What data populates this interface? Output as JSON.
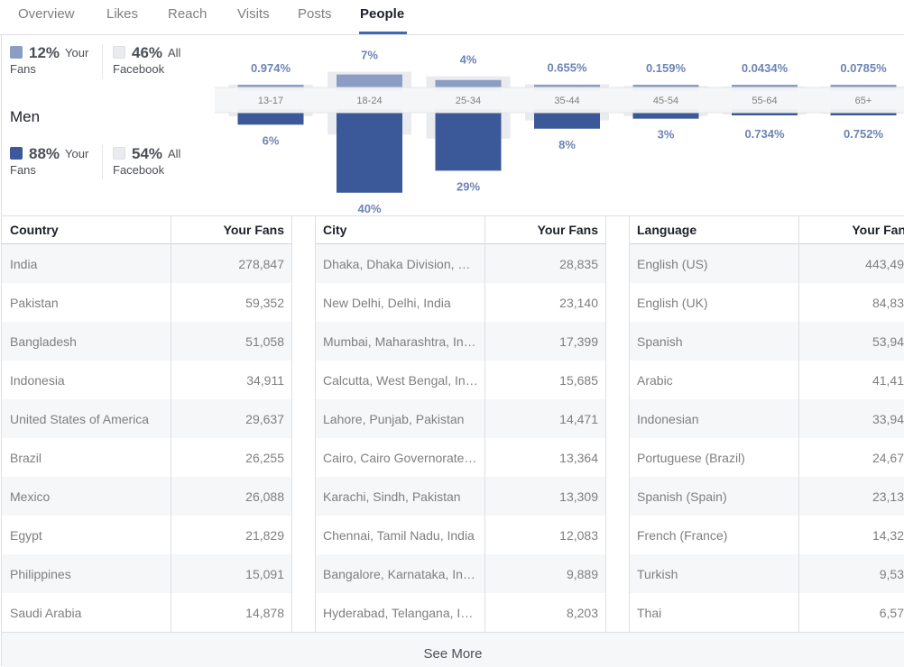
{
  "tabs": [
    {
      "label": "Overview"
    },
    {
      "label": "Likes"
    },
    {
      "label": "Reach"
    },
    {
      "label": "Visits"
    },
    {
      "label": "Posts"
    },
    {
      "label": "People",
      "active": true
    }
  ],
  "summary": {
    "women": {
      "your_fans_pct": "12%",
      "your_label_a": "Your",
      "your_label_b": "Fans",
      "all_facebook_pct": "46%",
      "all_label_a": "All",
      "all_label_b": "Facebook"
    },
    "men_title": "Men",
    "men": {
      "your_fans_pct": "88%",
      "your_label_a": "Your",
      "your_label_b": "Fans",
      "all_facebook_pct": "54%",
      "all_label_a": "All",
      "all_label_b": "Facebook"
    }
  },
  "colors": {
    "women": "#8b9dc3",
    "men": "#3b5998",
    "background_bar": "#e9ebee",
    "accent": "#4267b2"
  },
  "chart_data": {
    "type": "bar",
    "categories": [
      "13-17",
      "18-24",
      "25-34",
      "35-44",
      "45-54",
      "55-64",
      "65+"
    ],
    "series": [
      {
        "values_label": [
          "0.974%",
          "7%",
          "4%",
          "0.655%",
          "0.159%",
          "0.0434%",
          "0.0785%"
        ],
        "values": [
          0.974,
          7,
          4,
          0.655,
          0.159,
          0.0434,
          0.0785
        ]
      },
      {
        "values_label": [
          "6%",
          "40%",
          "29%",
          "8%",
          "3%",
          "0.734%",
          "0.752%"
        ],
        "values": [
          6,
          40,
          29,
          8,
          3,
          0.734,
          0.752
        ]
      }
    ],
    "background_women": [
      1.5,
      8.5,
      6.0,
      1.7,
      0.7,
      0.5,
      0.4
    ],
    "background_men": [
      1.8,
      11,
      13,
      3.9,
      1.7,
      0.9,
      0.5
    ]
  },
  "tables": [
    {
      "col1": "Country",
      "col2": "Your Fans",
      "rows": [
        [
          "India",
          "278,847"
        ],
        [
          "Pakistan",
          "59,352"
        ],
        [
          "Bangladesh",
          "51,058"
        ],
        [
          "Indonesia",
          "34,911"
        ],
        [
          "United States of America",
          "29,637"
        ],
        [
          "Brazil",
          "26,255"
        ],
        [
          "Mexico",
          "26,088"
        ],
        [
          "Egypt",
          "21,829"
        ],
        [
          "Philippines",
          "15,091"
        ],
        [
          "Saudi Arabia",
          "14,878"
        ]
      ]
    },
    {
      "col1": "City",
      "col2": "Your Fans",
      "rows": [
        [
          "Dhaka, Dhaka Division, B…",
          "28,835"
        ],
        [
          "New Delhi, Delhi, India",
          "23,140"
        ],
        [
          "Mumbai, Maharashtra, India",
          "17,399"
        ],
        [
          "Calcutta, West Bengal, India",
          "15,685"
        ],
        [
          "Lahore, Punjab, Pakistan",
          "14,471"
        ],
        [
          "Cairo, Cairo Governorate, …",
          "13,364"
        ],
        [
          "Karachi, Sindh, Pakistan",
          "13,309"
        ],
        [
          "Chennai, Tamil Nadu, India",
          "12,083"
        ],
        [
          "Bangalore, Karnataka, India",
          "9,889"
        ],
        [
          "Hyderabad, Telangana, India",
          "8,203"
        ]
      ]
    },
    {
      "col1": "Language",
      "col2": "Your Fan",
      "rows": [
        [
          "English (US)",
          "443,49"
        ],
        [
          "English (UK)",
          "84,83"
        ],
        [
          "Spanish",
          "53,94"
        ],
        [
          "Arabic",
          "41,41"
        ],
        [
          "Indonesian",
          "33,94"
        ],
        [
          "Portuguese (Brazil)",
          "24,67"
        ],
        [
          "Spanish (Spain)",
          "23,13"
        ],
        [
          "French (France)",
          "14,32"
        ],
        [
          "Turkish",
          "9,53"
        ],
        [
          "Thai",
          "6,57"
        ]
      ]
    }
  ],
  "see_more": "See More"
}
